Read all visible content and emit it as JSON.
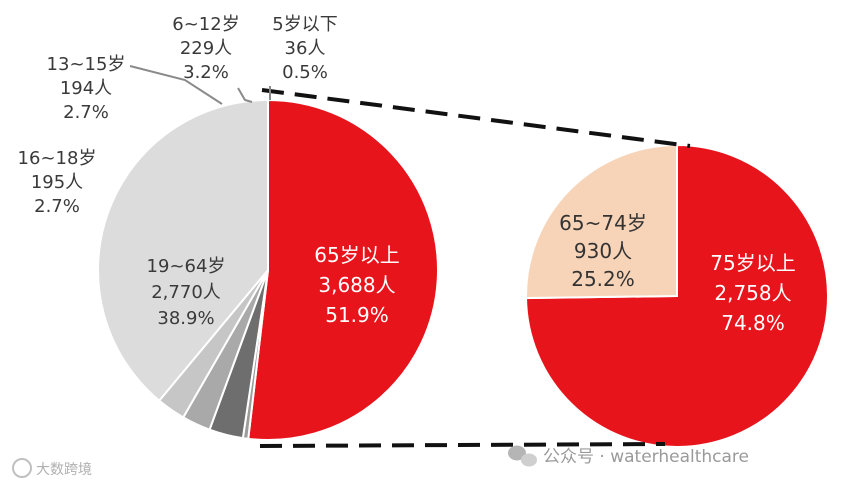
{
  "chart_data": [
    {
      "type": "pie",
      "categories": [
        "65岁以上",
        "5岁以下",
        "6~12岁",
        "13~15岁",
        "16~18岁",
        "19~64岁"
      ],
      "values": [
        3688,
        36,
        229,
        194,
        195,
        2770
      ],
      "percent_labels": [
        "51.9%",
        "0.5%",
        "3.2%",
        "2.7%",
        "2.7%",
        "38.9%"
      ],
      "count_labels": [
        "3,688人",
        "36人",
        "229人",
        "194人",
        "195人",
        "2,770人"
      ],
      "colors": [
        "#e8141c",
        "#9c9c9c",
        "#6e6e6e",
        "#a9a9a9",
        "#c6c6c6",
        "#dcdcdc"
      ],
      "title": "",
      "xlabel": "",
      "ylabel": "",
      "legend": "none"
    },
    {
      "type": "pie",
      "categories": [
        "75岁以上",
        "65~74岁"
      ],
      "values": [
        2758,
        930
      ],
      "percent_labels": [
        "74.8%",
        "25.2%"
      ],
      "count_labels": [
        "2,758人",
        "930人"
      ],
      "colors": [
        "#e8141c",
        "#f7d4b8"
      ],
      "title": "",
      "xlabel": "",
      "ylabel": "",
      "legend": "none"
    }
  ],
  "watermark": {
    "left": "大数跨境",
    "right": "公众号 · waterhealthcare"
  }
}
